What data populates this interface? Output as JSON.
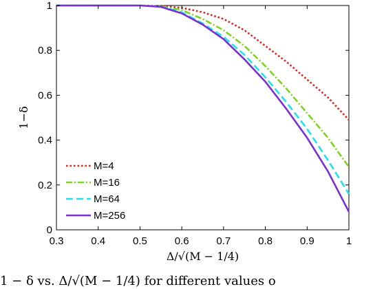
{
  "chart_data": {
    "type": "line",
    "xlabel": "Δ/√(M − 1/4)",
    "ylabel": "1−δ",
    "xlim": [
      0.3,
      1.0
    ],
    "ylim": [
      0,
      1
    ],
    "xticks": [
      "0.3",
      "0.4",
      "0.5",
      "0.6",
      "0.7",
      "0.8",
      "0.9",
      "1"
    ],
    "yticks": [
      "0",
      "0.2",
      "0.4",
      "0.6",
      "0.8",
      "1"
    ],
    "grid": false,
    "legend_position": "bottom-left",
    "series": [
      {
        "name": "M=4",
        "color": "#e0201b",
        "style": "dotted",
        "x": [
          0.3,
          0.4,
          0.5,
          0.55,
          0.6,
          0.65,
          0.7,
          0.75,
          0.8,
          0.85,
          0.9,
          0.95,
          1.0
        ],
        "y": [
          1.0,
          1.0,
          1.0,
          0.998,
          0.99,
          0.97,
          0.94,
          0.89,
          0.82,
          0.75,
          0.67,
          0.59,
          0.49
        ]
      },
      {
        "name": "M=16",
        "color": "#7ed321",
        "style": "dashdot",
        "x": [
          0.3,
          0.4,
          0.5,
          0.55,
          0.6,
          0.65,
          0.7,
          0.75,
          0.8,
          0.85,
          0.9,
          0.95,
          1.0
        ],
        "y": [
          1.0,
          1.0,
          1.0,
          0.996,
          0.98,
          0.94,
          0.89,
          0.82,
          0.73,
          0.63,
          0.52,
          0.41,
          0.28
        ]
      },
      {
        "name": "M=64",
        "color": "#1ee3ee",
        "style": "dashed",
        "x": [
          0.3,
          0.4,
          0.5,
          0.55,
          0.6,
          0.65,
          0.7,
          0.75,
          0.8,
          0.85,
          0.9,
          0.95,
          1.0
        ],
        "y": [
          1.0,
          1.0,
          1.0,
          0.995,
          0.97,
          0.92,
          0.86,
          0.78,
          0.68,
          0.57,
          0.45,
          0.31,
          0.16
        ]
      },
      {
        "name": "M=256",
        "color": "#7a2ed6",
        "style": "solid",
        "x": [
          0.3,
          0.4,
          0.5,
          0.55,
          0.6,
          0.65,
          0.7,
          0.75,
          0.8,
          0.85,
          0.9,
          0.95,
          1.0
        ],
        "y": [
          1.0,
          1.0,
          1.0,
          0.994,
          0.965,
          0.915,
          0.85,
          0.76,
          0.66,
          0.54,
          0.41,
          0.26,
          0.08
        ]
      }
    ]
  },
  "caption_text": "1 − δ vs. Δ/√(M − 1/4) for different values o"
}
